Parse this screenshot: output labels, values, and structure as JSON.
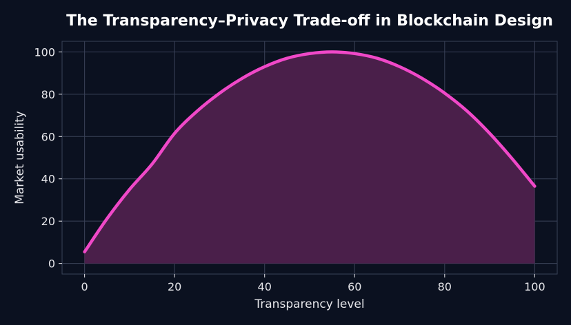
{
  "chart_data": {
    "type": "area",
    "title": "The Transparency–Privacy Trade-off in Blockchain Design",
    "xlabel": "Transparency level",
    "ylabel": "Market usability",
    "xlim": [
      -5,
      105
    ],
    "ylim": [
      -5,
      105
    ],
    "xticks": [
      0,
      20,
      40,
      60,
      80,
      100
    ],
    "yticks": [
      0,
      20,
      40,
      60,
      80,
      100
    ],
    "grid": true,
    "legend": "none",
    "series": [
      {
        "x": [
          0,
          5,
          10,
          15,
          20,
          25,
          30,
          35,
          40,
          45,
          50,
          55,
          60,
          65,
          70,
          75,
          80,
          85,
          90,
          95,
          100
        ],
        "values": [
          5.5,
          21.2,
          35.0,
          47.0,
          61.5,
          72.0,
          80.5,
          87.5,
          93.0,
          97.0,
          99.2,
          100.0,
          99.2,
          97.0,
          93.0,
          87.5,
          80.5,
          72.0,
          61.5,
          49.5,
          36.5
        ]
      }
    ],
    "colors": {
      "background": "#0b1120",
      "line": "#f048c8",
      "fill": "#4a1f4a",
      "grid": "#3a4258",
      "text": "#e6e6ea",
      "title": "#ffffff"
    }
  }
}
